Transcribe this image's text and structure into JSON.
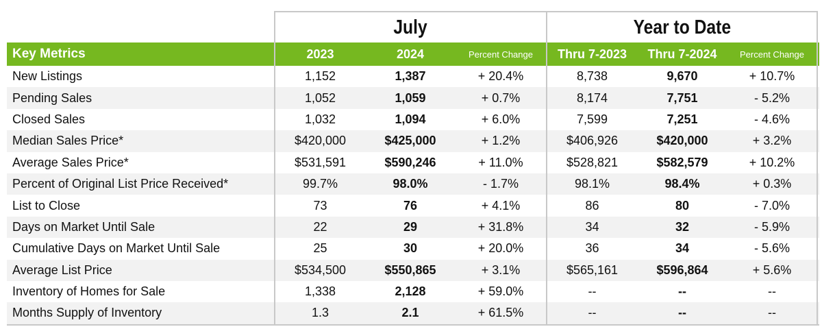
{
  "groups": {
    "july": "July",
    "ytd": "Year to Date"
  },
  "header": {
    "label": "Key Metrics",
    "cols": [
      "2023",
      "2024",
      "Percent Change",
      "Thru 7-2023",
      "Thru 7-2024",
      "Percent Change"
    ]
  },
  "accent": "#76b820",
  "rows": [
    {
      "label": "New Listings",
      "v": [
        "1,152",
        "1,387",
        "+ 20.4%",
        "8,738",
        "9,670",
        "+ 10.7%"
      ]
    },
    {
      "label": "Pending Sales",
      "v": [
        "1,052",
        "1,059",
        "+ 0.7%",
        "8,174",
        "7,751",
        "- 5.2%"
      ]
    },
    {
      "label": "Closed Sales",
      "v": [
        "1,032",
        "1,094",
        "+ 6.0%",
        "7,599",
        "7,251",
        "- 4.6%"
      ]
    },
    {
      "label": "Median Sales Price*",
      "v": [
        "$420,000",
        "$425,000",
        "+ 1.2%",
        "$406,926",
        "$420,000",
        "+ 3.2%"
      ]
    },
    {
      "label": "Average Sales Price*",
      "v": [
        "$531,591",
        "$590,246",
        "+ 11.0%",
        "$528,821",
        "$582,579",
        "+ 10.2%"
      ]
    },
    {
      "label": "Percent of Original List Price Received*",
      "v": [
        "99.7%",
        "98.0%",
        "- 1.7%",
        "98.1%",
        "98.4%",
        "+ 0.3%"
      ]
    },
    {
      "label": "List to Close",
      "v": [
        "73",
        "76",
        "+ 4.1%",
        "86",
        "80",
        "- 7.0%"
      ]
    },
    {
      "label": "Days on Market Until Sale",
      "v": [
        "22",
        "29",
        "+ 31.8%",
        "34",
        "32",
        "- 5.9%"
      ]
    },
    {
      "label": "Cumulative Days on Market Until Sale",
      "v": [
        "25",
        "30",
        "+ 20.0%",
        "36",
        "34",
        "- 5.6%"
      ]
    },
    {
      "label": "Average List Price",
      "v": [
        "$534,500",
        "$550,865",
        "+ 3.1%",
        "$565,161",
        "$596,864",
        "+ 5.6%"
      ]
    },
    {
      "label": "Inventory of Homes for Sale",
      "v": [
        "1,338",
        "2,128",
        "+ 59.0%",
        "--",
        "--",
        "--"
      ]
    },
    {
      "label": "Months Supply of Inventory",
      "v": [
        "1.3",
        "2.1",
        "+ 61.5%",
        "--",
        "--",
        "--"
      ]
    }
  ]
}
